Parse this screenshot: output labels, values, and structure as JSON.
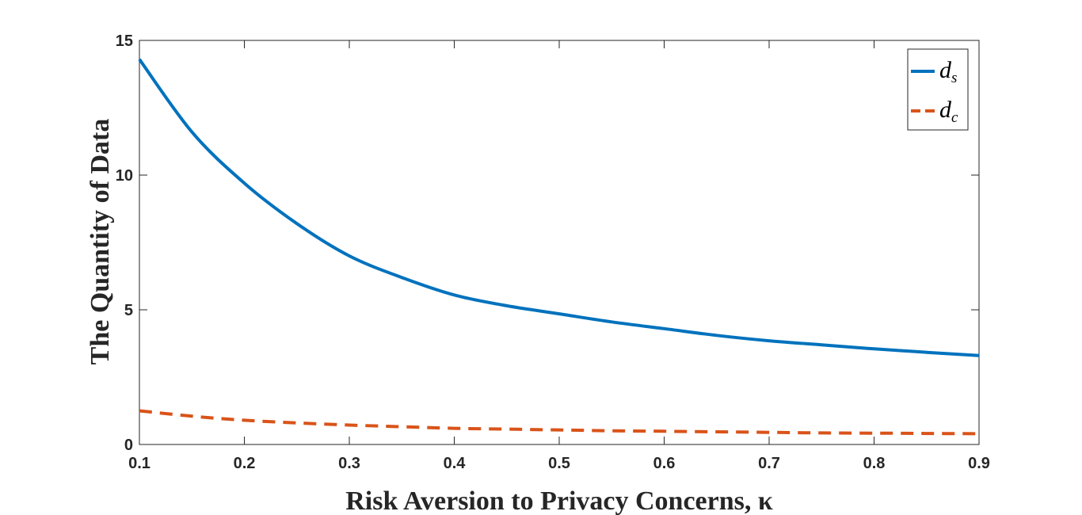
{
  "chart_data": {
    "type": "line",
    "xlabel": "Risk Aversion to Privacy Concerns, κ",
    "ylabel": "The Quantity of Data",
    "xlim": [
      0.1,
      0.9
    ],
    "ylim": [
      0,
      15
    ],
    "xticks": [
      "0.1",
      "0.2",
      "0.3",
      "0.4",
      "0.5",
      "0.6",
      "0.7",
      "0.8",
      "0.9"
    ],
    "yticks": [
      "0",
      "5",
      "10",
      "15"
    ],
    "grid": false,
    "legend_position": "top-right",
    "series": [
      {
        "name": "d_s",
        "legend_main": "d",
        "legend_sub": "s",
        "color": "#0072BD",
        "style": "solid",
        "x": [
          0.1,
          0.15,
          0.2,
          0.25,
          0.3,
          0.35,
          0.4,
          0.45,
          0.5,
          0.55,
          0.6,
          0.65,
          0.7,
          0.75,
          0.8,
          0.85,
          0.9
        ],
        "y": [
          14.3,
          11.6,
          9.7,
          8.2,
          7.0,
          6.2,
          5.55,
          5.15,
          4.85,
          4.55,
          4.3,
          4.05,
          3.85,
          3.7,
          3.55,
          3.42,
          3.3
        ]
      },
      {
        "name": "d_c",
        "legend_main": "d",
        "legend_sub": "c",
        "color": "#D95319",
        "style": "dashed",
        "x": [
          0.1,
          0.15,
          0.2,
          0.25,
          0.3,
          0.35,
          0.4,
          0.45,
          0.5,
          0.55,
          0.6,
          0.65,
          0.7,
          0.75,
          0.8,
          0.85,
          0.9
        ],
        "y": [
          1.25,
          1.05,
          0.9,
          0.8,
          0.72,
          0.66,
          0.6,
          0.57,
          0.54,
          0.51,
          0.49,
          0.47,
          0.45,
          0.43,
          0.42,
          0.41,
          0.4
        ]
      }
    ]
  }
}
